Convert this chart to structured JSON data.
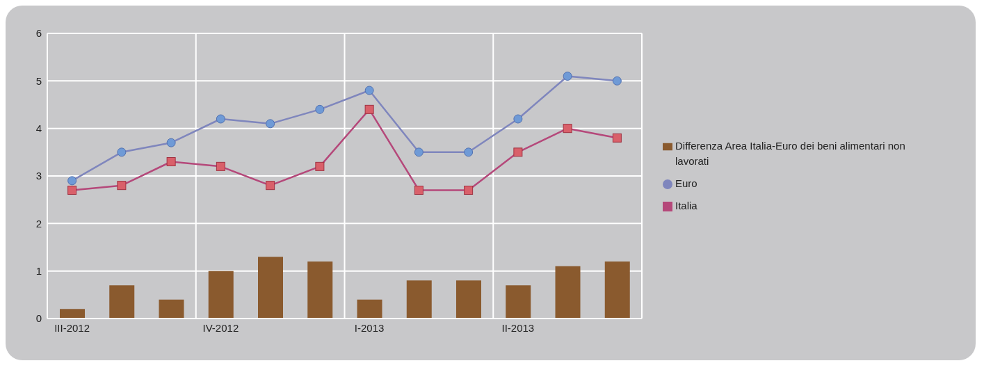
{
  "chart_data": {
    "type": "bar",
    "categories": [
      "III-2012",
      null,
      null,
      "IV-2012",
      null,
      null,
      "I-2013",
      null,
      null,
      "II-2013",
      null,
      null
    ],
    "series": [
      {
        "name": "Differenza Area Italia-Euro dei beni alimentari non lavorati",
        "color": "#8a5a2e",
        "values": [
          0.2,
          0.7,
          0.4,
          1.0,
          1.3,
          1.2,
          0.4,
          0.8,
          0.8,
          0.7,
          1.1,
          1.2
        ]
      },
      {
        "name": "Euro",
        "type": "line",
        "color": "#7f86bd",
        "marker": "circle",
        "values": [
          2.9,
          3.5,
          3.7,
          4.2,
          4.1,
          4.4,
          4.8,
          3.5,
          3.5,
          4.2,
          5.1,
          5.0
        ]
      },
      {
        "name": "Italia",
        "type": "line",
        "color": "#b5487a",
        "marker": "square",
        "values": [
          2.7,
          2.8,
          3.3,
          3.2,
          2.8,
          3.2,
          4.4,
          2.7,
          2.7,
          3.5,
          4.0,
          3.8
        ]
      }
    ],
    "ylim": [
      0,
      6
    ],
    "yticks": [
      0,
      1,
      2,
      3,
      4,
      5,
      6
    ],
    "grid": true,
    "legend": "right"
  }
}
